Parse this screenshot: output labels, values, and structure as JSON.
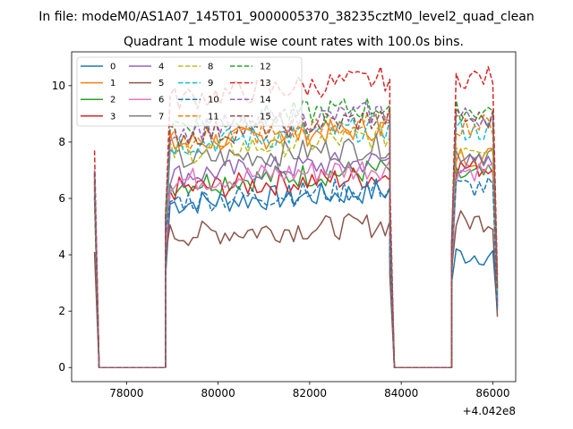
{
  "header": {
    "file_title": "In file: modeM0/AS1A07_145T01_9000005370_38235cztM0_level2_quad_clean",
    "plot_title": "Quadrant 1 module wise count rates with 100.0s bins."
  },
  "chart_data": {
    "type": "line",
    "title": "Quadrant 1 module wise count rates with 100.0s bins.",
    "xlabel": "",
    "ylabel": "",
    "x_offset_label": "+4.042e8",
    "x_offset": 404200000,
    "xlim": [
      76800,
      86500
    ],
    "ylim": [
      -0.5,
      11.2
    ],
    "x_ticks": [
      78000,
      80000,
      82000,
      84000,
      86000
    ],
    "x_tick_labels": [
      "78000",
      "80000",
      "82000",
      "84000",
      "86000"
    ],
    "y_ticks": [
      0,
      2,
      4,
      6,
      8,
      10
    ],
    "y_tick_labels": [
      "0",
      "2",
      "4",
      "6",
      "8",
      "10"
    ],
    "grid": false,
    "legend_position": "top-left",
    "legend_columns": 4,
    "x_bin": 100,
    "segments": [
      {
        "start": 77300,
        "end": 78850
      },
      {
        "start": 78850,
        "end": 83750
      },
      {
        "start": 83750,
        "end": 85100
      },
      {
        "start": 85100,
        "end": 86100
      }
    ],
    "series": [
      {
        "name": "0",
        "color": "#1f77b4",
        "dash": "solid",
        "level": 5.8,
        "spike": 6.8,
        "end1": 4.0,
        "end2": 2.0
      },
      {
        "name": "1",
        "color": "#ff7f0e",
        "dash": "solid",
        "level": 7.9,
        "spike": 6.5,
        "end1": 7.5,
        "end2": 2.6
      },
      {
        "name": "2",
        "color": "#2ca02c",
        "dash": "solid",
        "level": 6.5,
        "spike": 6.0,
        "end1": 6.8,
        "end2": 2.3
      },
      {
        "name": "3",
        "color": "#d62728",
        "dash": "solid",
        "level": 6.3,
        "spike": 6.4,
        "end1": 7.1,
        "end2": 2.2
      },
      {
        "name": "4",
        "color": "#9467bd",
        "dash": "solid",
        "level": 6.8,
        "spike": 6.9,
        "end1": 7.2,
        "end2": 2.4
      },
      {
        "name": "5",
        "color": "#8c564b",
        "dash": "solid",
        "level": 4.7,
        "spike": 4.1,
        "end1": 5.2,
        "end2": 1.8
      },
      {
        "name": "6",
        "color": "#e377c2",
        "dash": "solid",
        "level": 6.6,
        "spike": 6.3,
        "end1": 7.0,
        "end2": 2.3
      },
      {
        "name": "7",
        "color": "#7f7f7f",
        "dash": "solid",
        "level": 7.3,
        "spike": 6.6,
        "end1": 7.6,
        "end2": 2.5
      },
      {
        "name": "8",
        "color": "#bcbd22",
        "dash": "dashed",
        "level": 7.6,
        "spike": 6.2,
        "end1": 7.9,
        "end2": 2.7
      },
      {
        "name": "9",
        "color": "#17becf",
        "dash": "dashed",
        "level": 7.9,
        "spike": 6.6,
        "end1": 8.4,
        "end2": 2.7
      },
      {
        "name": "10",
        "color": "#1f77b4",
        "dash": "dashed",
        "level": 5.9,
        "spike": 6.1,
        "end1": 6.4,
        "end2": 2.1
      },
      {
        "name": "11",
        "color": "#ff7f0e",
        "dash": "dashed",
        "level": 8.0,
        "spike": 6.7,
        "end1": 8.6,
        "end2": 2.8
      },
      {
        "name": "12",
        "color": "#2ca02c",
        "dash": "dashed",
        "level": 8.6,
        "spike": 6.9,
        "end1": 9.1,
        "end2": 3.0
      },
      {
        "name": "13",
        "color": "#d62728",
        "dash": "dashed",
        "level": 9.5,
        "spike": 7.7,
        "end1": 10.3,
        "end2": 3.2
      },
      {
        "name": "14",
        "color": "#9467bd",
        "dash": "dashed",
        "level": 8.4,
        "spike": 7.0,
        "end1": 8.9,
        "end2": 2.9
      },
      {
        "name": "15",
        "color": "#8c564b",
        "dash": "dashed",
        "level": 8.2,
        "spike": 6.9,
        "end1": 8.8,
        "end2": 2.8
      }
    ]
  }
}
